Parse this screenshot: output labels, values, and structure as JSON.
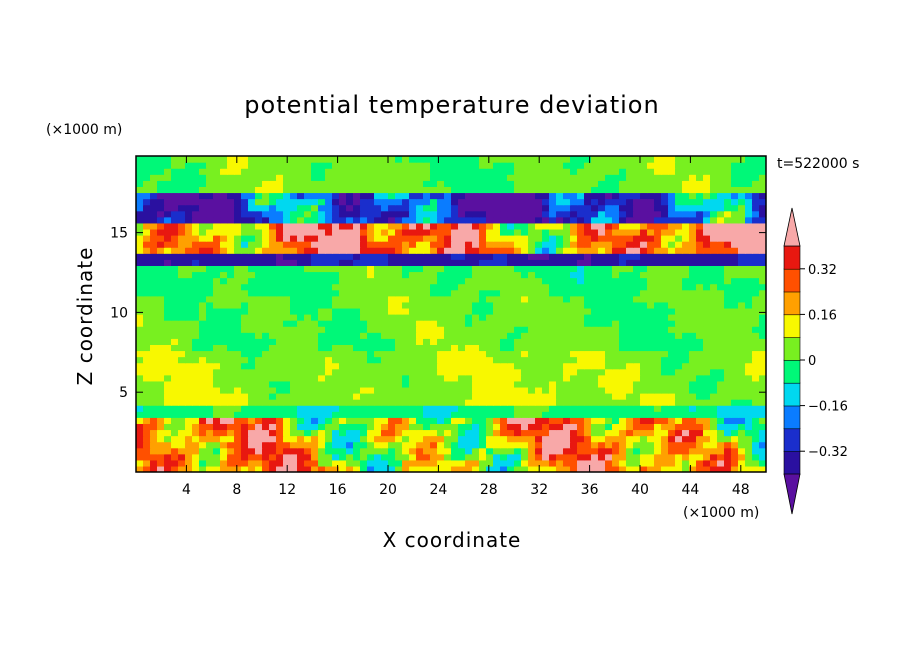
{
  "chart_data": {
    "type": "heatmap",
    "title": "potential temperature deviation",
    "time_label": "t=522000 s",
    "xlabel": "X coordinate",
    "ylabel": "Z coordinate",
    "x_unit": "(×1000 m)",
    "y_unit": "(×1000 m)",
    "xlim": [
      0,
      50
    ],
    "ylim": [
      0,
      19.8
    ],
    "x_ticks": [
      4,
      8,
      12,
      16,
      20,
      24,
      28,
      32,
      36,
      40,
      44,
      48
    ],
    "y_ticks": [
      5,
      10,
      15
    ],
    "colorbar": {
      "levels": [
        -0.4,
        -0.32,
        -0.24,
        -0.16,
        -0.08,
        0,
        0.08,
        0.16,
        0.24,
        0.32,
        0.4
      ],
      "tick_labels": [
        "0.32",
        "0.16",
        "0",
        "−0.16",
        "−0.32"
      ],
      "tick_values": [
        0.32,
        0.16,
        0,
        -0.16,
        -0.32
      ],
      "colors": [
        "#5a10a0",
        "#2a10a0",
        "#1a2ecc",
        "#0a7cff",
        "#00d8f0",
        "#00f878",
        "#78f020",
        "#f8f800",
        "#ffa000",
        "#ff5000",
        "#e81810",
        "#f8a8a8"
      ],
      "extend": "both"
    },
    "layers": [
      {
        "z0": 0.0,
        "z1": 3.6,
        "value": 0.15,
        "variability": "high"
      },
      {
        "z0": 3.6,
        "z1": 4.3,
        "value": -0.05
      },
      {
        "z0": 4.3,
        "z1": 7.5,
        "value": 0.06
      },
      {
        "z0": 7.5,
        "z1": 11.0,
        "value": 0.02
      },
      {
        "z0": 11.0,
        "z1": 12.8,
        "value": 0.0
      },
      {
        "z0": 12.8,
        "z1": 13.6,
        "value": -0.35
      },
      {
        "z0": 13.6,
        "z1": 15.5,
        "value": 0.25,
        "variability": "high"
      },
      {
        "z0": 15.5,
        "z1": 17.6,
        "value": -0.3,
        "variability": "high"
      },
      {
        "z0": 17.6,
        "z1": 19.8,
        "value": 0.02
      }
    ]
  }
}
